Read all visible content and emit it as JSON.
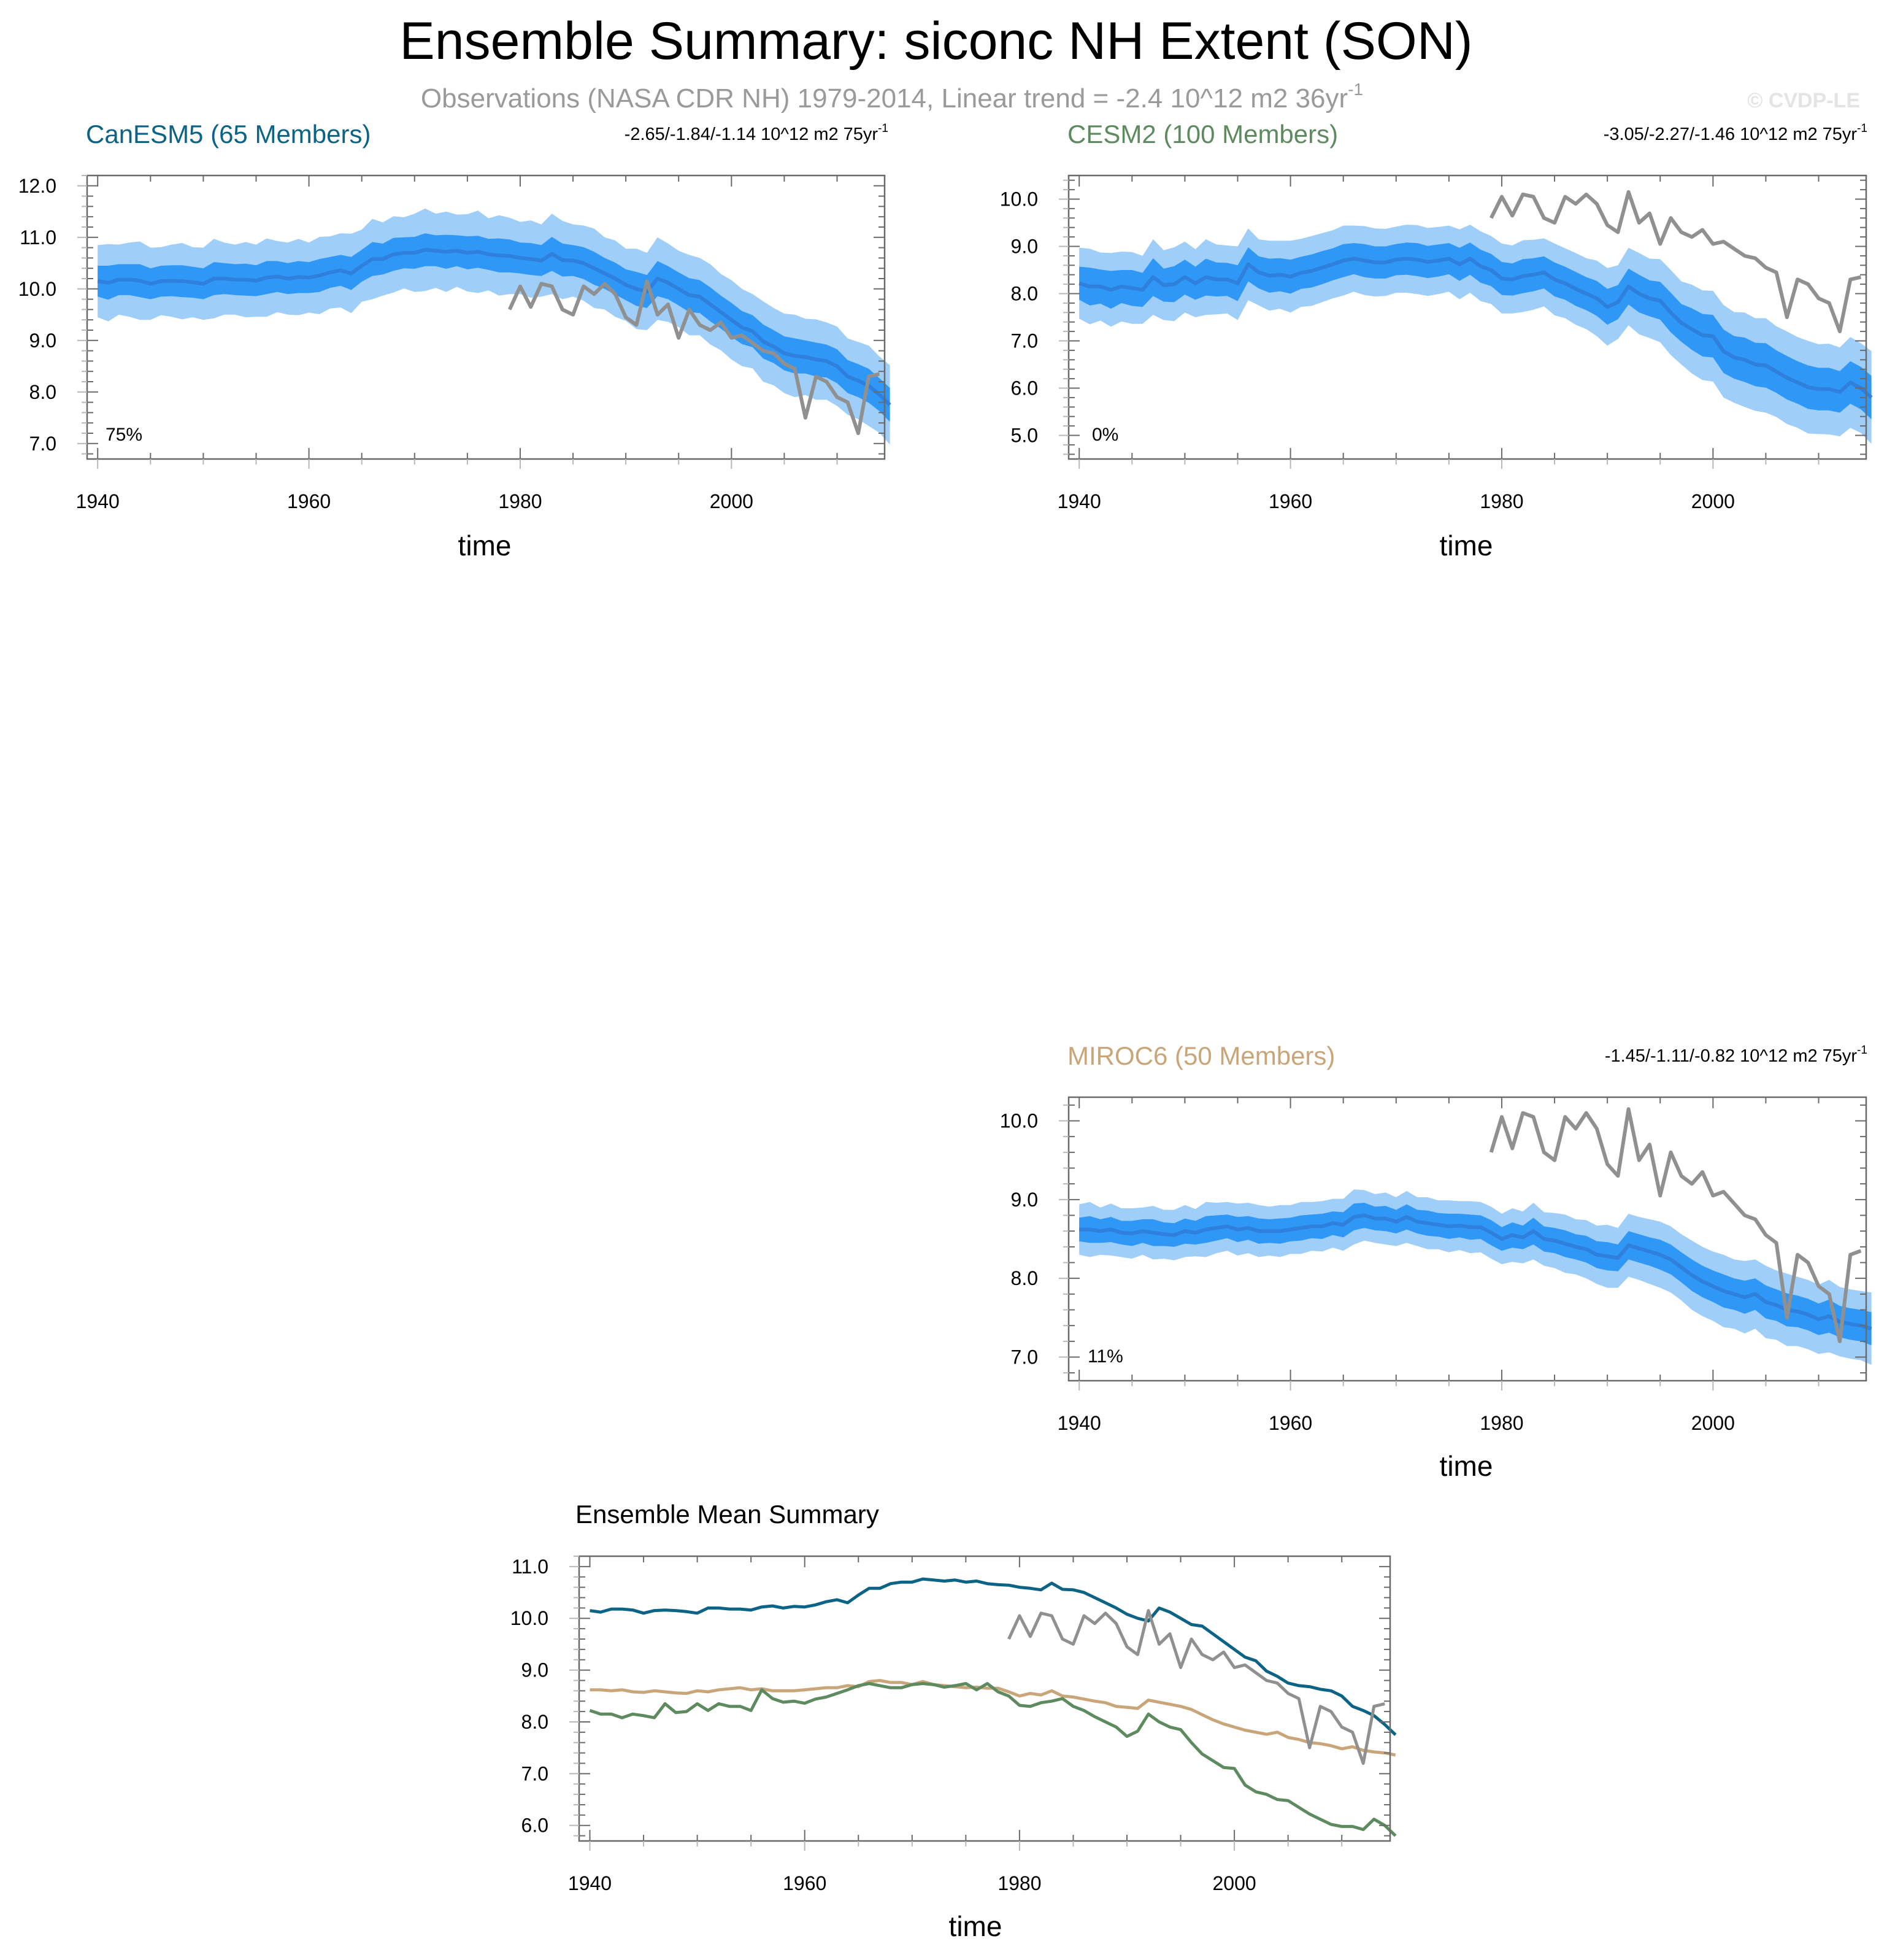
{
  "figure": {
    "title": "Ensemble Summary: siconc NH Extent (SON)",
    "subtitle": "Observations (NASA CDR NH) 1979-2014, Linear trend = -2.4 10^12 m2 36yr",
    "subtitle_sup": "-1",
    "copyright": "© CVDP-LE"
  },
  "colors": {
    "band_outer": "#9fcff9",
    "band_inner": "#2f97f5",
    "ens_mean": "#2f7fdc",
    "obs": "#909090",
    "canesm5": "#0b6386",
    "cesm2": "#5d8a5e",
    "miroc6": "#c9a67a",
    "frame": "#555555"
  },
  "chart_data": [
    {
      "id": "canesm5",
      "type": "area",
      "title": "CanESM5 (65 Members)",
      "trend": "-2.65/-1.84/-1.14 10^12 m2 75yr",
      "trend_sup": "-1",
      "percent": "75%",
      "xlabel": "time",
      "xlim": [
        1939,
        2014.5
      ],
      "ylim": [
        6.7,
        12.2
      ],
      "xticks": [
        "1940",
        "1960",
        "1980",
        "2000"
      ],
      "yticks": [
        "7.0",
        "8.0",
        "9.0",
        "10.0",
        "11.0",
        "12.0"
      ]
    },
    {
      "id": "cesm2",
      "type": "area",
      "title": "CESM2 (100 Members)",
      "trend": "-3.05/-2.27/-1.46 10^12 m2 75yr",
      "trend_sup": "-1",
      "percent": "0%",
      "xlabel": "time",
      "xlim": [
        1939,
        2014.5
      ],
      "ylim": [
        4.5,
        10.5
      ],
      "xticks": [
        "1940",
        "1960",
        "1980",
        "2000"
      ],
      "yticks": [
        "5.0",
        "6.0",
        "7.0",
        "8.0",
        "9.0",
        "10.0"
      ]
    },
    {
      "id": "miroc6",
      "type": "area",
      "title": "MIROC6 (50 Members)",
      "trend": "-1.45/-1.11/-0.82 10^12 m2 75yr",
      "trend_sup": "-1",
      "percent": "11%",
      "xlabel": "time",
      "xlim": [
        1939,
        2014.5
      ],
      "ylim": [
        6.7,
        10.3
      ],
      "xticks": [
        "1940",
        "1960",
        "1980",
        "2000"
      ],
      "yticks": [
        "7.0",
        "8.0",
        "9.0",
        "10.0"
      ]
    },
    {
      "id": "summary",
      "type": "line",
      "title": "Ensemble Mean Summary",
      "xlabel": "time",
      "xlim": [
        1939,
        2014.5
      ],
      "ylim": [
        5.7,
        11.2
      ],
      "xticks": [
        "1940",
        "1960",
        "1980",
        "2000"
      ],
      "yticks": [
        "6.0",
        "7.0",
        "8.0",
        "9.0",
        "10.0",
        "11.0"
      ]
    }
  ],
  "series": {
    "x_start": 1940,
    "obs_x_start": 1979,
    "obs": [
      9.6,
      10.05,
      9.65,
      10.1,
      10.05,
      9.6,
      9.5,
      10.05,
      9.9,
      10.1,
      9.9,
      9.45,
      9.3,
      10.15,
      9.5,
      9.7,
      9.05,
      9.6,
      9.3,
      9.2,
      9.35,
      9.05,
      9.1,
      8.95,
      8.8,
      8.75,
      8.55,
      8.45,
      7.5,
      8.3,
      8.2,
      7.9,
      7.8,
      7.2,
      8.3,
      8.35
    ],
    "canesm5_mean": [
      10.15,
      10.12,
      10.18,
      10.18,
      10.16,
      10.1,
      10.15,
      10.16,
      10.15,
      10.13,
      10.1,
      10.2,
      10.2,
      10.18,
      10.18,
      10.16,
      10.22,
      10.24,
      10.2,
      10.23,
      10.22,
      10.26,
      10.32,
      10.36,
      10.3,
      10.45,
      10.58,
      10.58,
      10.67,
      10.7,
      10.7,
      10.76,
      10.74,
      10.72,
      10.74,
      10.7,
      10.72,
      10.67,
      10.65,
      10.64,
      10.6,
      10.58,
      10.55,
      10.68,
      10.56,
      10.55,
      10.5,
      10.4,
      10.3,
      10.2,
      10.08,
      10.0,
      9.95,
      10.2,
      10.12,
      10.0,
      9.88,
      9.85,
      9.7,
      9.55,
      9.4,
      9.25,
      9.18,
      8.98,
      8.88,
      8.75,
      8.7,
      8.68,
      8.63,
      8.6,
      8.5,
      8.3,
      8.22,
      8.12,
      7.95,
      7.75
    ],
    "canesm5_spread_inner": [
      0.3,
      0.33,
      0.3,
      0.3,
      0.32,
      0.3,
      0.3,
      0.3,
      0.31,
      0.3,
      0.3,
      0.32,
      0.3,
      0.3,
      0.31,
      0.3,
      0.32,
      0.3,
      0.3,
      0.31,
      0.3,
      0.32,
      0.3,
      0.3,
      0.32,
      0.31,
      0.33,
      0.3,
      0.32,
      0.3,
      0.31,
      0.32,
      0.3,
      0.33,
      0.3,
      0.32,
      0.31,
      0.3,
      0.33,
      0.32,
      0.3,
      0.31,
      0.3,
      0.33,
      0.32,
      0.3,
      0.31,
      0.32,
      0.3,
      0.31,
      0.3,
      0.33,
      0.32,
      0.34,
      0.32,
      0.32,
      0.33,
      0.32,
      0.33,
      0.32,
      0.33,
      0.32,
      0.31,
      0.33,
      0.32,
      0.33,
      0.34,
      0.32,
      0.33,
      0.32,
      0.33,
      0.32,
      0.32,
      0.33,
      0.32,
      0.33
    ],
    "canesm5_spread_outer": [
      0.7,
      0.75,
      0.68,
      0.72,
      0.76,
      0.7,
      0.66,
      0.7,
      0.74,
      0.68,
      0.7,
      0.77,
      0.7,
      0.68,
      0.73,
      0.7,
      0.76,
      0.69,
      0.7,
      0.74,
      0.68,
      0.75,
      0.7,
      0.72,
      0.77,
      0.7,
      0.78,
      0.71,
      0.74,
      0.69,
      0.76,
      0.8,
      0.72,
      0.78,
      0.7,
      0.75,
      0.8,
      0.7,
      0.78,
      0.74,
      0.7,
      0.75,
      0.7,
      0.78,
      0.76,
      0.7,
      0.73,
      0.77,
      0.7,
      0.74,
      0.7,
      0.78,
      0.75,
      0.8,
      0.76,
      0.74,
      0.78,
      0.75,
      0.78,
      0.74,
      0.77,
      0.75,
      0.72,
      0.78,
      0.75,
      0.77,
      0.8,
      0.74,
      0.78,
      0.75,
      0.77,
      0.74,
      0.75,
      0.78,
      0.74,
      0.77
    ],
    "cesm2_mean": [
      8.22,
      8.15,
      8.15,
      8.08,
      8.15,
      8.12,
      8.08,
      8.35,
      8.18,
      8.2,
      8.35,
      8.22,
      8.35,
      8.3,
      8.3,
      8.22,
      8.62,
      8.45,
      8.38,
      8.4,
      8.36,
      8.44,
      8.48,
      8.55,
      8.62,
      8.7,
      8.74,
      8.7,
      8.66,
      8.66,
      8.72,
      8.74,
      8.72,
      8.67,
      8.7,
      8.74,
      8.62,
      8.74,
      8.58,
      8.5,
      8.32,
      8.3,
      8.37,
      8.4,
      8.45,
      8.3,
      8.22,
      8.1,
      8.0,
      7.9,
      7.72,
      7.82,
      8.15,
      8.0,
      7.9,
      7.85,
      7.6,
      7.38,
      7.25,
      7.12,
      7.1,
      6.78,
      6.65,
      6.6,
      6.5,
      6.48,
      6.35,
      6.22,
      6.12,
      6.02,
      5.98,
      5.98,
      5.92,
      6.12,
      6.0,
      5.8
    ],
    "cesm2_spread_inner": [
      0.35,
      0.4,
      0.36,
      0.4,
      0.35,
      0.38,
      0.36,
      0.4,
      0.35,
      0.38,
      0.37,
      0.35,
      0.39,
      0.36,
      0.35,
      0.38,
      0.36,
      0.34,
      0.36,
      0.35,
      0.36,
      0.34,
      0.35,
      0.35,
      0.34,
      0.35,
      0.33,
      0.35,
      0.34,
      0.34,
      0.33,
      0.34,
      0.35,
      0.34,
      0.34,
      0.33,
      0.35,
      0.34,
      0.35,
      0.34,
      0.35,
      0.34,
      0.36,
      0.35,
      0.34,
      0.36,
      0.35,
      0.36,
      0.35,
      0.37,
      0.38,
      0.36,
      0.38,
      0.4,
      0.38,
      0.4,
      0.42,
      0.4,
      0.44,
      0.45,
      0.45,
      0.46,
      0.45,
      0.47,
      0.46,
      0.47,
      0.45,
      0.46,
      0.45,
      0.46,
      0.45,
      0.45,
      0.44,
      0.45,
      0.45,
      0.46
    ],
    "cesm2_spread_outer": [
      0.75,
      0.8,
      0.72,
      0.78,
      0.74,
      0.76,
      0.72,
      0.8,
      0.74,
      0.78,
      0.75,
      0.72,
      0.8,
      0.74,
      0.72,
      0.78,
      0.76,
      0.7,
      0.74,
      0.72,
      0.76,
      0.72,
      0.74,
      0.73,
      0.72,
      0.74,
      0.7,
      0.73,
      0.72,
      0.71,
      0.7,
      0.72,
      0.73,
      0.72,
      0.71,
      0.7,
      0.74,
      0.72,
      0.74,
      0.72,
      0.74,
      0.72,
      0.76,
      0.74,
      0.72,
      0.76,
      0.74,
      0.76,
      0.75,
      0.8,
      0.82,
      0.78,
      0.82,
      0.86,
      0.84,
      0.88,
      0.9,
      0.88,
      0.94,
      0.95,
      0.96,
      0.98,
      0.96,
      1.0,
      0.98,
      1.0,
      0.96,
      0.98,
      0.96,
      0.98,
      0.95,
      0.96,
      0.94,
      0.96,
      0.95,
      0.98
    ],
    "miroc6_mean": [
      8.62,
      8.62,
      8.6,
      8.62,
      8.58,
      8.57,
      8.6,
      8.58,
      8.56,
      8.55,
      8.6,
      8.58,
      8.62,
      8.64,
      8.66,
      8.62,
      8.64,
      8.6,
      8.6,
      8.6,
      8.62,
      8.64,
      8.66,
      8.66,
      8.7,
      8.68,
      8.78,
      8.8,
      8.76,
      8.76,
      8.72,
      8.78,
      8.72,
      8.7,
      8.68,
      8.66,
      8.67,
      8.65,
      8.65,
      8.58,
      8.5,
      8.55,
      8.52,
      8.6,
      8.5,
      8.48,
      8.44,
      8.4,
      8.37,
      8.3,
      8.28,
      8.26,
      8.42,
      8.38,
      8.34,
      8.3,
      8.24,
      8.14,
      8.04,
      7.96,
      7.9,
      7.84,
      7.8,
      7.76,
      7.8,
      7.7,
      7.66,
      7.6,
      7.58,
      7.54,
      7.48,
      7.52,
      7.45,
      7.42,
      7.4,
      7.36
    ],
    "miroc6_spread_inner": [
      0.15,
      0.17,
      0.15,
      0.16,
      0.15,
      0.16,
      0.15,
      0.17,
      0.15,
      0.15,
      0.16,
      0.15,
      0.17,
      0.16,
      0.15,
      0.16,
      0.15,
      0.16,
      0.15,
      0.16,
      0.15,
      0.16,
      0.15,
      0.16,
      0.15,
      0.16,
      0.17,
      0.16,
      0.15,
      0.16,
      0.15,
      0.16,
      0.15,
      0.16,
      0.15,
      0.16,
      0.15,
      0.16,
      0.15,
      0.16,
      0.15,
      0.16,
      0.15,
      0.17,
      0.16,
      0.16,
      0.17,
      0.16,
      0.17,
      0.17,
      0.18,
      0.17,
      0.18,
      0.18,
      0.18,
      0.19,
      0.19,
      0.19,
      0.2,
      0.2,
      0.2,
      0.21,
      0.2,
      0.21,
      0.2,
      0.21,
      0.2,
      0.21,
      0.2,
      0.2,
      0.2,
      0.21,
      0.2,
      0.2,
      0.2,
      0.21
    ],
    "miroc6_spread_outer": [
      0.32,
      0.35,
      0.3,
      0.33,
      0.31,
      0.32,
      0.3,
      0.34,
      0.31,
      0.32,
      0.33,
      0.3,
      0.35,
      0.32,
      0.31,
      0.33,
      0.32,
      0.33,
      0.31,
      0.33,
      0.31,
      0.33,
      0.31,
      0.32,
      0.31,
      0.33,
      0.35,
      0.32,
      0.31,
      0.33,
      0.31,
      0.33,
      0.31,
      0.33,
      0.31,
      0.33,
      0.31,
      0.33,
      0.32,
      0.33,
      0.32,
      0.34,
      0.33,
      0.36,
      0.34,
      0.35,
      0.37,
      0.35,
      0.37,
      0.37,
      0.4,
      0.38,
      0.4,
      0.4,
      0.41,
      0.42,
      0.42,
      0.42,
      0.44,
      0.44,
      0.44,
      0.46,
      0.44,
      0.46,
      0.44,
      0.46,
      0.44,
      0.46,
      0.44,
      0.44,
      0.44,
      0.46,
      0.44,
      0.44,
      0.44,
      0.46
    ]
  }
}
